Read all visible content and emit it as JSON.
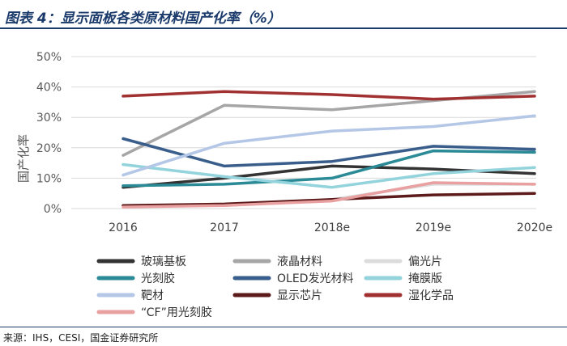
{
  "header": {
    "title": "图表 4：显示面板各类原材料国产化率（%）"
  },
  "chart_data": {
    "type": "line",
    "title": "",
    "xlabel": "",
    "ylabel": "国产化率",
    "categories": [
      "2016",
      "2017",
      "2018e",
      "2019e",
      "2020e"
    ],
    "yticks": [
      "0%",
      "10%",
      "20%",
      "30%",
      "40%",
      "50%"
    ],
    "ylim": [
      0,
      50
    ],
    "grid": true,
    "legend_position": "bottom",
    "series": [
      {
        "name": "玻璃基板",
        "color": "#333333",
        "values": [
          7,
          10,
          14,
          13,
          11.5
        ]
      },
      {
        "name": "液晶材料",
        "color": "#a6a6a6",
        "values": [
          17.5,
          34,
          32.5,
          35.5,
          38.5
        ]
      },
      {
        "name": "偏光片",
        "color": "#dcdcdc",
        "values": [
          1,
          1,
          3,
          8,
          8
        ]
      },
      {
        "name": "光刻胶",
        "color": "#2a8a96",
        "values": [
          7.5,
          8,
          10,
          19,
          18.5
        ]
      },
      {
        "name": "OLED发光材料",
        "color": "#3a5e8c",
        "values": [
          23,
          14,
          15.5,
          20.5,
          19.5
        ]
      },
      {
        "name": "掩膜版",
        "color": "#92d3dc",
        "values": [
          14.5,
          10.5,
          7,
          11.5,
          13.5
        ]
      },
      {
        "name": "靶材",
        "color": "#b4c7e7",
        "values": [
          11,
          21.5,
          25.5,
          27,
          30.5
        ]
      },
      {
        "name": "显示芯片",
        "color": "#5c1a1a",
        "values": [
          1,
          1.5,
          3,
          4.5,
          5
        ]
      },
      {
        "name": "湿化学品",
        "color": "#a13030",
        "values": [
          37,
          38.5,
          37.5,
          36,
          37
        ]
      },
      {
        "name": "“CF”用光刻胶",
        "color": "#e8a0a0",
        "values": [
          0.5,
          1,
          2.5,
          8.5,
          8
        ]
      }
    ]
  },
  "footer": {
    "source": "来源：IHS，CESI，国金证券研究所"
  }
}
